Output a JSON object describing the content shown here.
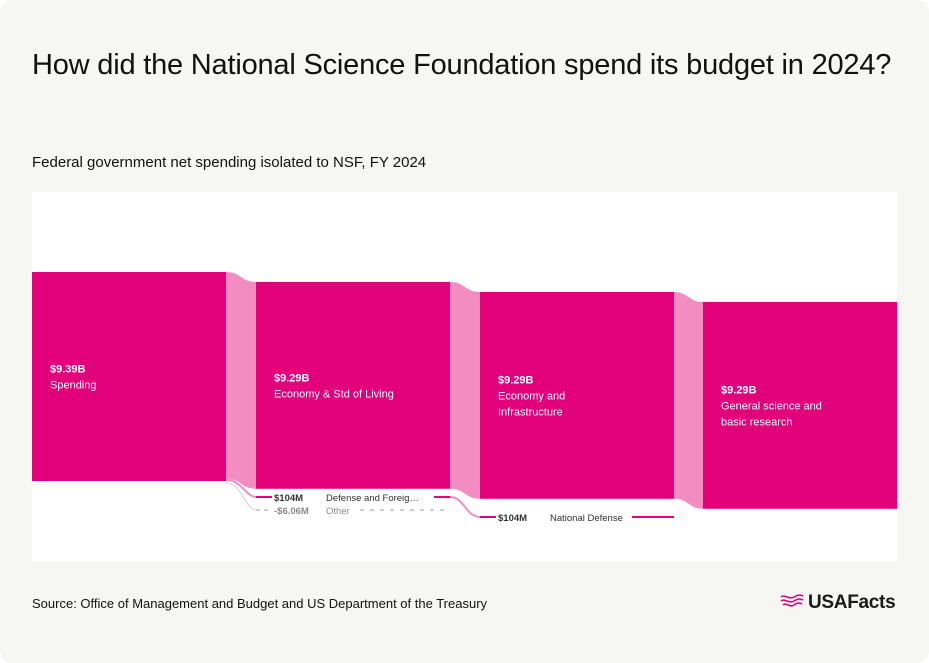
{
  "header": {
    "title": "How did the National Science Foundation spend its budget in 2024?",
    "subtitle": "Federal government net spending isolated to NSF, FY 2024"
  },
  "footer": {
    "source": "Source: Office of Management and Budget and US Department of the Treasury",
    "brand": "USAFacts"
  },
  "colors": {
    "node": "#e3007b",
    "link": "#f28cc1",
    "negative": "#9a9a9a",
    "background": "#f6f6f2"
  },
  "chart_data": {
    "type": "sankey",
    "title": "How did the National Science Foundation spend its budget in 2024?",
    "subtitle": "Federal government net spending isolated to NSF, FY 2024",
    "unit": "USD",
    "levels": [
      [
        {
          "id": "spending",
          "label": "Spending",
          "value_label": "$9.39B",
          "value": 9390000000
        }
      ],
      [
        {
          "id": "econ_std",
          "label": "Economy & Std of Living",
          "value_label": "$9.29B",
          "value": 9290000000
        },
        {
          "id": "defense_foreign",
          "label": "Defense and Foreig…",
          "value_label": "$104M",
          "value": 104000000
        },
        {
          "id": "other",
          "label": "Other",
          "value_label": "-$6.06M",
          "value": -6060000,
          "negative": true
        }
      ],
      [
        {
          "id": "econ_infra",
          "label": "Economy and Infrastructure",
          "value_label": "$9.29B",
          "value": 9290000000
        },
        {
          "id": "natl_defense",
          "label": "National Defense",
          "value_label": "$104M",
          "value": 104000000
        }
      ],
      [
        {
          "id": "general_science",
          "label": "General science and basic research",
          "value_label": "$9.29B",
          "value": 9290000000
        }
      ]
    ],
    "links": [
      {
        "source": "spending",
        "target": "econ_std",
        "value": 9290000000
      },
      {
        "source": "spending",
        "target": "defense_foreign",
        "value": 104000000
      },
      {
        "source": "spending",
        "target": "other",
        "value": -6060000
      },
      {
        "source": "econ_std",
        "target": "econ_infra",
        "value": 9290000000
      },
      {
        "source": "defense_foreign",
        "target": "natl_defense",
        "value": 104000000
      },
      {
        "source": "econ_infra",
        "target": "general_science",
        "value": 9290000000
      }
    ]
  }
}
